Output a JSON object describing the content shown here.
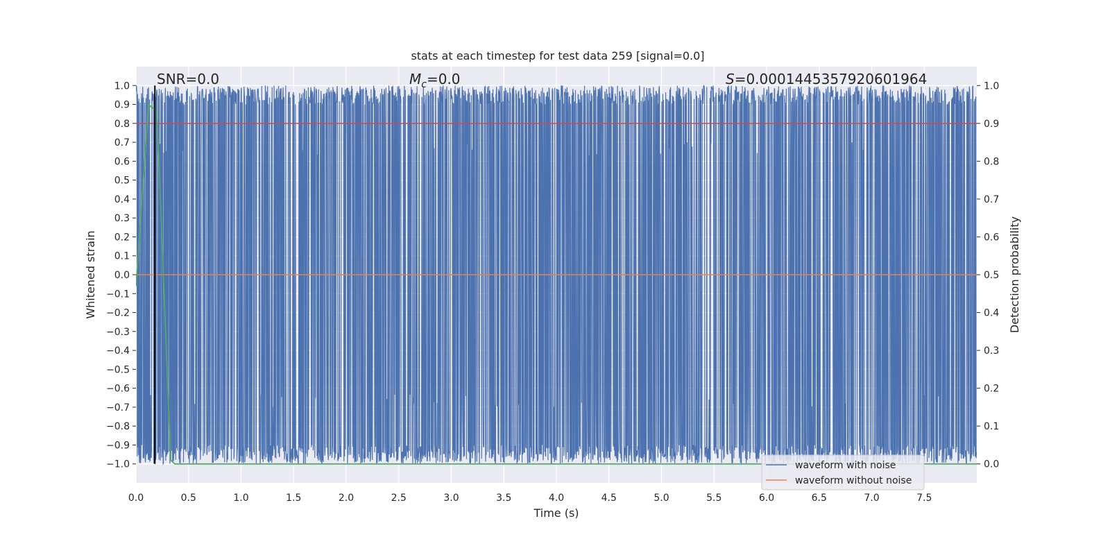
{
  "chart_data": {
    "type": "line",
    "title": "stats at each timestep for test data 259 [signal=0.0]",
    "xlabel": "Time (s)",
    "ylabel": "Whitened strain",
    "y2label": "Detection probability",
    "xlim": [
      0.0,
      8.0
    ],
    "ylim": [
      -1.1,
      1.1
    ],
    "y2lim": [
      -0.05,
      1.05
    ],
    "x_ticks": [
      "0.0",
      "0.5",
      "1.0",
      "1.5",
      "2.0",
      "2.5",
      "3.0",
      "3.5",
      "4.0",
      "4.5",
      "5.0",
      "5.5",
      "6.0",
      "6.5",
      "7.0",
      "7.5"
    ],
    "y_ticks": [
      "1.0",
      "0.9",
      "0.8",
      "0.7",
      "0.6",
      "0.5",
      "0.4",
      "0.3",
      "0.2",
      "0.1",
      "0.0",
      "−0.1",
      "−0.2",
      "−0.3",
      "−0.4",
      "−0.5",
      "−0.6",
      "−0.7",
      "−0.8",
      "−0.9",
      "−1.0"
    ],
    "y2_ticks": [
      "1.0",
      "0.9",
      "0.8",
      "0.7",
      "0.6",
      "0.5",
      "0.4",
      "0.3",
      "0.2",
      "0.1",
      "0.0"
    ],
    "grid": true,
    "annotations": {
      "snr": "SNR=0.0",
      "mc_symbol": "M",
      "mc_sub": "c",
      "mc_value": "=0.0",
      "s_symbol": "S",
      "s_value": "=0.0001445357920601964"
    },
    "series": [
      {
        "name": "waveform with noise",
        "color": "#4c72b0",
        "axis": "left",
        "description_values": "dense noise, bounded in [-1.0, 1.0]"
      },
      {
        "name": "waveform without noise",
        "color": "#dd8452",
        "axis": "left",
        "values_constant": 0.0
      },
      {
        "name": "",
        "color": "#55a868",
        "axis": "right",
        "x": [
          0.0,
          0.12,
          0.2,
          0.33,
          0.37,
          8.0
        ],
        "values": [
          0.47,
          0.95,
          0.93,
          0.01,
          0.0,
          0.0
        ]
      }
    ],
    "threshold_line": {
      "value": 0.9,
      "axis": "right",
      "color": "#c44e52"
    },
    "marker_line": {
      "x": 0.18,
      "color": "#000000"
    },
    "legend_placement": "lower-right"
  }
}
